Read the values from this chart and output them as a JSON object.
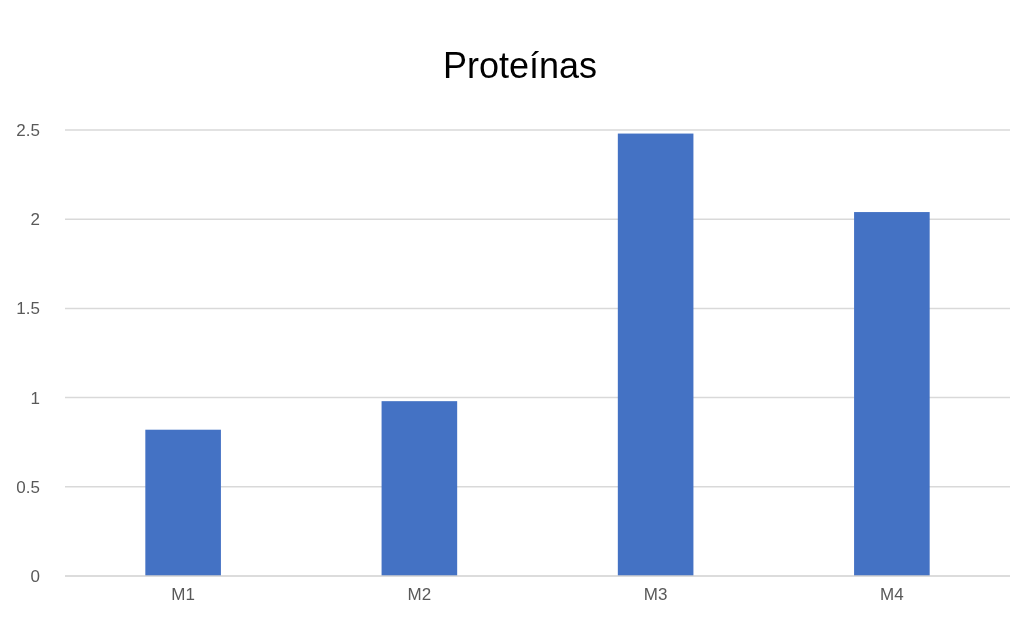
{
  "chart_data": {
    "type": "bar",
    "title": "Proteínas",
    "categories": [
      "M1",
      "M2",
      "M3",
      "M4"
    ],
    "values": [
      0.82,
      0.98,
      2.48,
      2.04
    ],
    "color": "#4472c4",
    "ylim": [
      0,
      2.5
    ],
    "yticks": [
      0,
      0.5,
      1,
      1.5,
      2,
      2.5
    ],
    "grid": "y"
  }
}
